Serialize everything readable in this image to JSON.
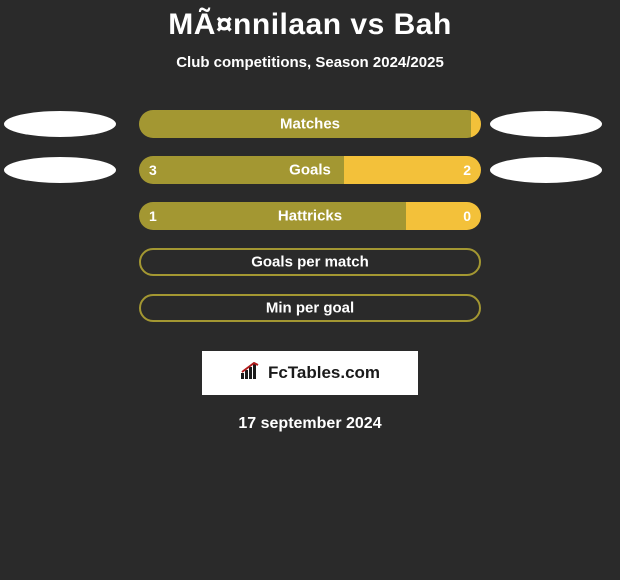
{
  "title": "MÃ¤nnilaan vs Bah",
  "subtitle": "Club competitions, Season 2024/2025",
  "colors": {
    "olive": "#a39732",
    "yellow": "#f3c13a",
    "white": "#ffffff",
    "bg": "#2a2a2a",
    "logo_icon": "#b11c1c"
  },
  "rows": [
    {
      "label": "Matches",
      "left_color": "#a39732",
      "right_color": "#f3c13a",
      "left_value": "",
      "right_value": "",
      "left_pct": 97,
      "right_pct": 3,
      "ellipses": true,
      "ellipse_left_color": "#ffffff",
      "ellipse_right_color": "#ffffff",
      "bordered": false
    },
    {
      "label": "Goals",
      "left_color": "#a39732",
      "right_color": "#f3c13a",
      "left_value": "3",
      "right_value": "2",
      "left_pct": 60,
      "right_pct": 40,
      "ellipses": true,
      "ellipse_left_color": "#ffffff",
      "ellipse_right_color": "#ffffff",
      "bordered": false
    },
    {
      "label": "Hattricks",
      "left_color": "#a39732",
      "right_color": "#f3c13a",
      "left_value": "1",
      "right_value": "0",
      "left_pct": 78,
      "right_pct": 22,
      "ellipses": false,
      "bordered": false
    },
    {
      "label": "Goals per match",
      "left_color": "transparent",
      "right_color": "transparent",
      "left_value": "",
      "right_value": "",
      "left_pct": 50,
      "right_pct": 50,
      "ellipses": false,
      "bordered": true
    },
    {
      "label": "Min per goal",
      "left_color": "transparent",
      "right_color": "transparent",
      "left_value": "",
      "right_value": "",
      "left_pct": 50,
      "right_pct": 50,
      "ellipses": false,
      "bordered": true
    }
  ],
  "logo_text": "FcTables.com",
  "date": "17 september 2024"
}
